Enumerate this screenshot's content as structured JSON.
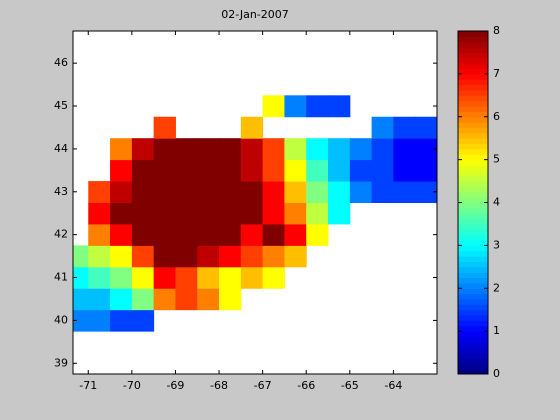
{
  "chart_data": {
    "type": "heatmap",
    "title": "02-Jan-2007",
    "colormap": "jet",
    "x": [
      -71.25,
      -70.75,
      -70.25,
      -69.75,
      -69.25,
      -68.75,
      -68.25,
      -67.75,
      -67.25,
      -66.75,
      -66.25,
      -65.75,
      -65.25,
      -64.75,
      -64.25,
      -63.75,
      -63.25
    ],
    "y": [
      39.0,
      39.5,
      40.0,
      40.5,
      41.0,
      41.5,
      42.0,
      42.5,
      43.0,
      43.5,
      44.0,
      44.5,
      45.0,
      45.5,
      46.0,
      46.5
    ],
    "z": [
      [
        null,
        null,
        null,
        null,
        null,
        null,
        null,
        null,
        null,
        null,
        null,
        null,
        null,
        null,
        null,
        null,
        null
      ],
      [
        null,
        null,
        null,
        null,
        null,
        null,
        null,
        null,
        null,
        null,
        null,
        null,
        null,
        null,
        null,
        null,
        null
      ],
      [
        2,
        2,
        1.5,
        1.5,
        null,
        null,
        null,
        null,
        null,
        null,
        null,
        null,
        null,
        null,
        null,
        null,
        null
      ],
      [
        2.5,
        2.5,
        3,
        4,
        6,
        6.5,
        6,
        5,
        null,
        null,
        null,
        null,
        null,
        null,
        null,
        null,
        null
      ],
      [
        3,
        3.5,
        4,
        5,
        7,
        6.5,
        5.5,
        5,
        5.5,
        5,
        null,
        null,
        null,
        null,
        null,
        null,
        null
      ],
      [
        4,
        4.5,
        5,
        6.5,
        8,
        8,
        7.5,
        7,
        6.5,
        6,
        5.5,
        null,
        null,
        null,
        null,
        null,
        null
      ],
      [
        null,
        6,
        7,
        8,
        8,
        8,
        8,
        8,
        7,
        8,
        7,
        5,
        null,
        null,
        null,
        null,
        null
      ],
      [
        null,
        7,
        8,
        8,
        8,
        8,
        8,
        8,
        8,
        7,
        6,
        4.5,
        3,
        null,
        null,
        null,
        null
      ],
      [
        null,
        6.5,
        7.5,
        8,
        8,
        8,
        8,
        8,
        8,
        7,
        5.5,
        4,
        3,
        2,
        1.5,
        1.5,
        1.5
      ],
      [
        null,
        null,
        7,
        8,
        8,
        8,
        8,
        8,
        7.5,
        6.5,
        5,
        3.5,
        2.5,
        1.5,
        1.5,
        1,
        1
      ],
      [
        null,
        null,
        6,
        7.5,
        8,
        8,
        8,
        8,
        7.5,
        6.5,
        4.5,
        3,
        2.5,
        2,
        1.5,
        1,
        1
      ],
      [
        null,
        null,
        null,
        null,
        6.5,
        null,
        null,
        null,
        5.5,
        null,
        null,
        null,
        null,
        null,
        2,
        1.5,
        1.5
      ],
      [
        null,
        null,
        null,
        null,
        null,
        null,
        null,
        null,
        null,
        5,
        2,
        1.5,
        1.5,
        null,
        null,
        null,
        null
      ],
      [
        null,
        null,
        null,
        null,
        null,
        null,
        null,
        null,
        null,
        null,
        null,
        null,
        null,
        null,
        null,
        null,
        null
      ],
      [
        null,
        null,
        null,
        null,
        null,
        null,
        null,
        null,
        null,
        null,
        null,
        null,
        null,
        null,
        null,
        null,
        null
      ],
      [
        null,
        null,
        null,
        null,
        null,
        null,
        null,
        null,
        null,
        null,
        null,
        null,
        null,
        null,
        null,
        null,
        null
      ]
    ],
    "xlim": [
      -71.35,
      -63
    ],
    "ylim": [
      38.75,
      46.75
    ],
    "xticks": [
      -71,
      -70,
      -69,
      -68,
      -67,
      -66,
      -65,
      -64
    ],
    "yticks": [
      39,
      40,
      41,
      42,
      43,
      44,
      45,
      46
    ],
    "clim": [
      0,
      8
    ],
    "cticks": [
      0,
      1,
      2,
      3,
      4,
      5,
      6,
      7,
      8
    ]
  }
}
